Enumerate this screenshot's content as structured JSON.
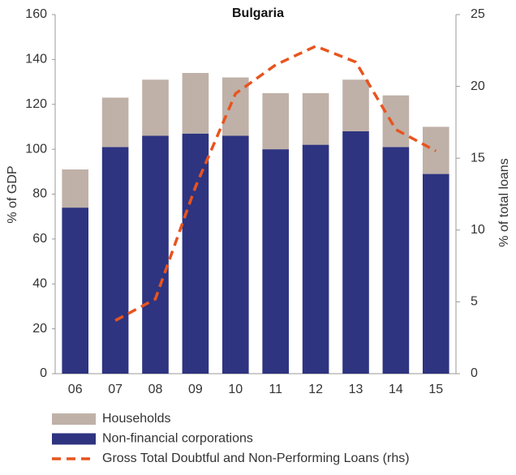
{
  "chart_data": {
    "type": "bar",
    "stacked": true,
    "title": "Bulgaria",
    "y_label": "% of GDP",
    "y2_label": "% of total loans",
    "categories": [
      "06",
      "07",
      "08",
      "09",
      "10",
      "11",
      "12",
      "13",
      "14",
      "15"
    ],
    "series": [
      {
        "name": "Households",
        "color": "#bfb1a8",
        "values": [
          17,
          22,
          25,
          27,
          26,
          25,
          23,
          23,
          23,
          21
        ]
      },
      {
        "name": "Non-financial corporations",
        "color": "#2e3480",
        "values": [
          74,
          101,
          106,
          107,
          106,
          100,
          102,
          108,
          101,
          89
        ]
      },
      {
        "name": "Gross Total Doubtful and Non-Performing Loans (rhs)",
        "color": "#e8541e",
        "type": "line",
        "dashed": true,
        "axis": "y2",
        "values": [
          null,
          3.7,
          5.2,
          13,
          19.5,
          21.5,
          22.8,
          21.7,
          17,
          15.5
        ]
      }
    ],
    "ylim": [
      0,
      160
    ],
    "yticks": [
      0,
      20,
      40,
      60,
      80,
      100,
      120,
      140,
      160
    ],
    "y2lim": [
      0,
      25
    ],
    "y2ticks": [
      0,
      5,
      10,
      15,
      20,
      25
    ]
  }
}
